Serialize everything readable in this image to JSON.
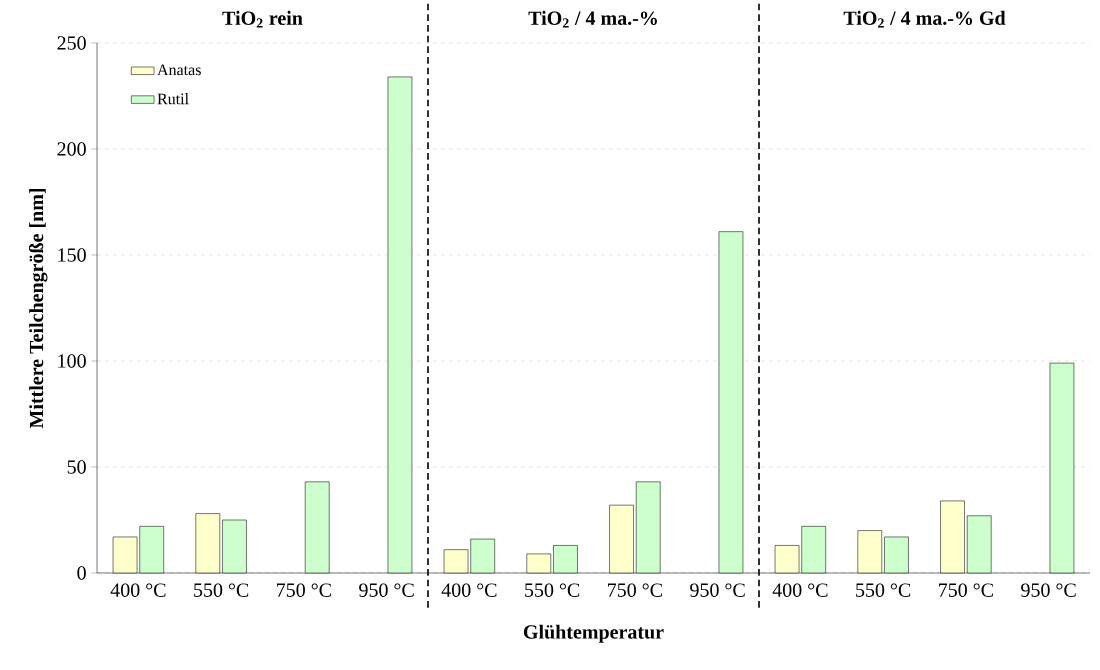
{
  "chart_data": {
    "type": "bar",
    "categories": [
      "400 °C",
      "550 °C",
      "750 °C",
      "950 °C",
      "400 °C",
      "550 °C",
      "750 °C",
      "950 °C",
      "400 °C",
      "550 °C",
      "750 °C",
      "950 °C"
    ],
    "series": [
      {
        "name": "Anatas",
        "color": "#ffffcc",
        "values": [
          17,
          28,
          null,
          null,
          11,
          9,
          32,
          null,
          13,
          20,
          34,
          null
        ]
      },
      {
        "name": "Rutil",
        "color": "#ccffcc",
        "values": [
          22,
          25,
          43,
          234,
          16,
          13,
          43,
          161,
          22,
          17,
          27,
          99
        ]
      }
    ],
    "xlabel": "Glühtemperatur",
    "ylabel": "Mittlere Teilchengröße [nm]",
    "annotations": [
      "TiO$_{2}$ rein",
      "TiO$_{2}$ / 4 ma.-%",
      "TiO$_{2}$ / 4 ma.-% Gd"
    ],
    "ylim": [
      0,
      250
    ],
    "yticks": [
      0,
      50,
      100,
      150,
      200,
      250
    ],
    "grid": "y",
    "legend": "top left"
  }
}
